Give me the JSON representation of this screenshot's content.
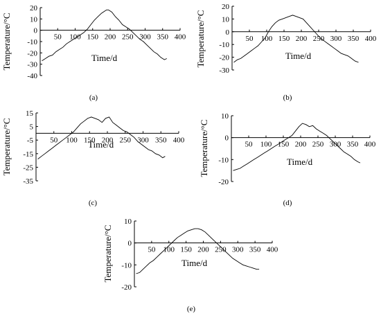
{
  "chart_data": [
    {
      "type": "line",
      "panel_label": "(a)",
      "xlabel": "Time/d",
      "ylabel": "Temperature/°C",
      "xlim": [
        0,
        400
      ],
      "ylim": [
        -40,
        20
      ],
      "x_ticks": [
        50,
        100,
        150,
        200,
        250,
        300,
        350,
        400
      ],
      "y_ticks": [
        20,
        10,
        0,
        -10,
        -20,
        -30,
        -40
      ],
      "grid": false,
      "series": [
        {
          "x": [
            5,
            15,
            25,
            35,
            45,
            55,
            65,
            75,
            85,
            95,
            105,
            115,
            125,
            135,
            145,
            155,
            165,
            175,
            185,
            190,
            195,
            200,
            205,
            215,
            225,
            235,
            245,
            255,
            265,
            275,
            285,
            295,
            305,
            315,
            325,
            335,
            345,
            355,
            362
          ],
          "y": [
            -27,
            -25,
            -23,
            -22,
            -19,
            -17,
            -15,
            -12,
            -10,
            -8,
            -6,
            -4,
            -2,
            1,
            5,
            9,
            12,
            15,
            17,
            18,
            18,
            17,
            16,
            12,
            9,
            5,
            3,
            1,
            -2,
            -5,
            -8,
            -10,
            -13,
            -16,
            -19,
            -21,
            -24,
            -26,
            -25
          ]
        }
      ]
    },
    {
      "type": "line",
      "panel_label": "(b)",
      "xlabel": "Time/d",
      "ylabel": "Temperature/°C",
      "xlim": [
        0,
        400
      ],
      "ylim": [
        -30,
        20
      ],
      "x_ticks": [
        50,
        100,
        150,
        200,
        250,
        300,
        350,
        400
      ],
      "y_ticks": [
        20,
        10,
        0,
        -10,
        -20,
        -30
      ],
      "grid": false,
      "series": [
        {
          "x": [
            5,
            15,
            25,
            35,
            45,
            55,
            65,
            75,
            85,
            95,
            105,
            115,
            125,
            135,
            145,
            155,
            165,
            175,
            185,
            195,
            205,
            215,
            225,
            235,
            245,
            255,
            265,
            275,
            285,
            295,
            305,
            315,
            325,
            335,
            345,
            355,
            365
          ],
          "y": [
            -24,
            -22,
            -21,
            -19,
            -17,
            -15,
            -13,
            -11,
            -8,
            -5,
            0,
            4,
            7,
            9,
            10,
            11,
            12,
            13,
            12,
            11,
            10,
            7,
            4,
            1,
            -2,
            -5,
            -7,
            -9,
            -11,
            -13,
            -15,
            -17,
            -18,
            -19,
            -21,
            -23,
            -24
          ]
        }
      ]
    },
    {
      "type": "line",
      "panel_label": "(c)",
      "xlabel": "Time/d",
      "ylabel": "Temperature/°C",
      "xlim": [
        0,
        400
      ],
      "ylim": [
        -35,
        15
      ],
      "x_ticks": [
        50,
        100,
        150,
        200,
        250,
        300,
        350,
        400
      ],
      "y_ticks": [
        15,
        5,
        -5,
        -15,
        -25,
        -35
      ],
      "grid": false,
      "series": [
        {
          "x": [
            5,
            15,
            25,
            35,
            45,
            55,
            65,
            75,
            85,
            95,
            105,
            115,
            125,
            135,
            145,
            155,
            165,
            175,
            185,
            195,
            205,
            215,
            225,
            235,
            245,
            255,
            265,
            275,
            285,
            295,
            305,
            315,
            325,
            335,
            345,
            355,
            362
          ],
          "y": [
            -19,
            -17,
            -15,
            -13,
            -11,
            -9,
            -7,
            -5,
            -3,
            -1,
            1,
            4,
            7,
            9,
            11,
            12,
            11,
            10,
            8,
            11,
            12,
            8,
            6,
            4,
            2,
            1,
            -1,
            -3,
            -6,
            -8,
            -10,
            -12,
            -13,
            -15,
            -16,
            -18,
            -17
          ]
        }
      ]
    },
    {
      "type": "line",
      "panel_label": "(d)",
      "xlabel": "Time/d",
      "ylabel": "Temperature/°C",
      "xlim": [
        0,
        400
      ],
      "ylim": [
        -20,
        10
      ],
      "x_ticks": [
        50,
        100,
        150,
        200,
        250,
        300,
        350,
        400
      ],
      "y_ticks": [
        10,
        0,
        -10,
        -20
      ],
      "grid": false,
      "series": [
        {
          "x": [
            5,
            15,
            25,
            35,
            45,
            55,
            65,
            75,
            85,
            95,
            105,
            115,
            125,
            135,
            145,
            155,
            165,
            175,
            185,
            195,
            205,
            215,
            225,
            235,
            245,
            255,
            265,
            275,
            285,
            295,
            305,
            315,
            325,
            335,
            345,
            355,
            365,
            372
          ],
          "y": [
            -15,
            -14.5,
            -14,
            -13,
            -12,
            -11,
            -10,
            -9,
            -8,
            -7,
            -6,
            -5,
            -4,
            -3,
            -2,
            -1,
            0,
            1,
            3,
            5,
            6.5,
            6,
            5,
            5.5,
            4,
            3,
            2,
            1,
            -0.5,
            -2,
            -3.5,
            -5,
            -6.5,
            -7.5,
            -8.5,
            -10,
            -11,
            -11.5
          ]
        }
      ]
    },
    {
      "type": "line",
      "panel_label": "(e)",
      "xlabel": "Time/d",
      "ylabel": "Temperature/°C",
      "xlim": [
        0,
        400
      ],
      "ylim": [
        -20,
        10
      ],
      "x_ticks": [
        50,
        100,
        150,
        200,
        250,
        300,
        350,
        400
      ],
      "y_ticks": [
        10,
        0,
        -10,
        -20
      ],
      "grid": false,
      "series": [
        {
          "x": [
            5,
            15,
            25,
            35,
            45,
            55,
            65,
            75,
            85,
            95,
            105,
            115,
            125,
            135,
            145,
            155,
            165,
            175,
            185,
            195,
            205,
            215,
            225,
            235,
            245,
            255,
            265,
            275,
            285,
            295,
            305,
            315,
            325,
            335,
            345,
            355,
            362
          ],
          "y": [
            -14,
            -13.5,
            -12,
            -10.5,
            -9,
            -8,
            -6.5,
            -5,
            -3.5,
            -2,
            -0.5,
            1,
            2.5,
            3.5,
            4.5,
            5.5,
            6,
            6.5,
            6.5,
            6,
            5,
            3.5,
            2,
            0.5,
            -1,
            -2.5,
            -4,
            -5.5,
            -7,
            -8,
            -9,
            -10,
            -10.5,
            -11,
            -11.5,
            -12,
            -12
          ]
        }
      ]
    }
  ]
}
